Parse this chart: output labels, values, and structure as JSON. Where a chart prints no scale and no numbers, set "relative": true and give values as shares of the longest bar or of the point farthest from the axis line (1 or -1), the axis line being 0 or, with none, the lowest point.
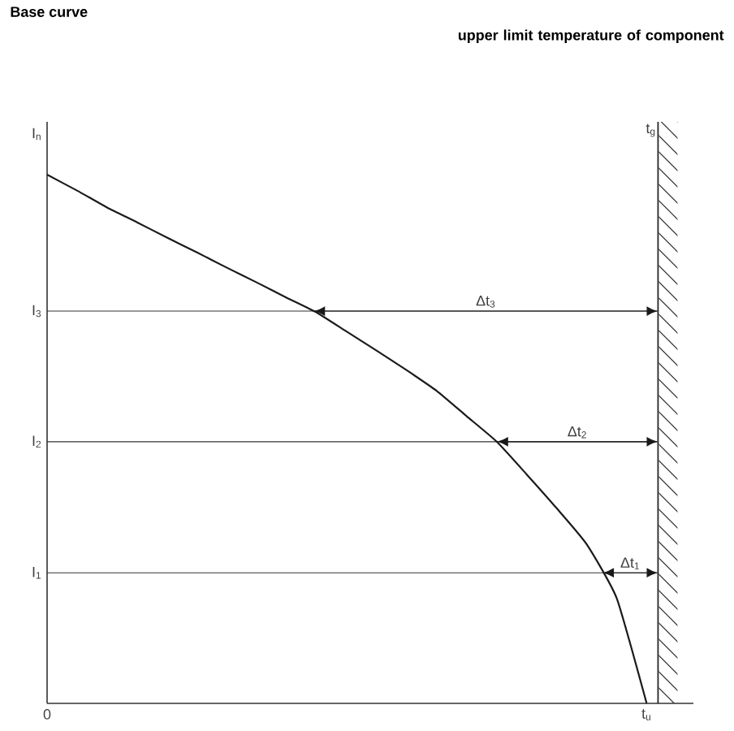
{
  "chart_data": {
    "type": "line",
    "title": "Base curve",
    "relative": true,
    "categories": [
      "0",
      null,
      null,
      null,
      null,
      null,
      null,
      null,
      null,
      null,
      null,
      null,
      null,
      null,
      null,
      null,
      null,
      null,
      null,
      null,
      "t$_{u}$"
    ],
    "series": [
      {
        "color": "#1a1a1a",
        "values": [
          1,
          0.97,
          0.938,
          0.91,
          0.881,
          0.853,
          0.824,
          0.796,
          0.767,
          0.739,
          0.703,
          0.667,
          0.63,
          0.591,
          0.543,
          0.495,
          0.433,
          0.369,
          0.301,
          0.199,
          0
        ]
      }
    ],
    "ref_lines": [
      {
        "axis": "y",
        "value": 0.247,
        "label": "I$_{1}$"
      },
      {
        "axis": "y",
        "value": 0.495,
        "label": "I$_{2}$"
      },
      {
        "axis": "y",
        "value": 0.742,
        "label": "I$_{3}$"
      }
    ],
    "annotations": [
      "upper limit temperature of component",
      "I$_{n}$",
      "t$_{g}$",
      {
        "text": "Δt$_{3}$",
        "y": 0.742
      },
      {
        "text": "Δt$_{2}$",
        "y": 0.495
      },
      {
        "text": "Δt$_{1}$",
        "y": 0.247
      }
    ],
    "marker": "none",
    "line_style": "solid"
  }
}
